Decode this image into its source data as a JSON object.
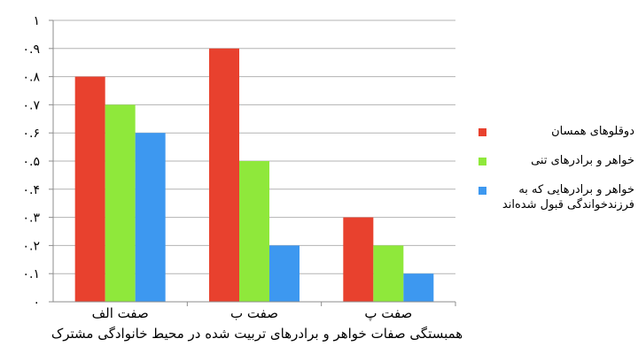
{
  "chart_data": {
    "type": "bar",
    "title": "",
    "caption": "همبستگی صفات خواهر و برادرهای تربیت شده در محیط خانوادگی مشترک",
    "categories": [
      "صفت الف",
      "صفت ب",
      "صفت پ"
    ],
    "series": [
      {
        "name": "دوقلوهای همسان",
        "color": "#e8412e",
        "values": [
          0.8,
          0.9,
          0.3
        ]
      },
      {
        "name": "خواهر و برادرهای تنی",
        "color": "#8fe83b",
        "values": [
          0.7,
          0.5,
          0.2
        ]
      },
      {
        "name": "خواهر و برادرهایی که به فرزندخواندگی قبول شده‌اند",
        "color": "#3d98f0",
        "values": [
          0.6,
          0.2,
          0.1
        ]
      }
    ],
    "ylim": [
      0,
      1
    ],
    "yticks": [
      {
        "value": 0,
        "label": "۰"
      },
      {
        "value": 0.1,
        "label": "۰.۱"
      },
      {
        "value": 0.2,
        "label": "۰.۲"
      },
      {
        "value": 0.3,
        "label": "۰.۳"
      },
      {
        "value": 0.4,
        "label": "۰.۴"
      },
      {
        "value": 0.5,
        "label": "۰.۵"
      },
      {
        "value": 0.6,
        "label": "۰.۶"
      },
      {
        "value": 0.7,
        "label": "۰.۷"
      },
      {
        "value": 0.8,
        "label": "۰.۸"
      },
      {
        "value": 0.9,
        "label": "۰.۹"
      },
      {
        "value": 1,
        "label": "۱"
      }
    ],
    "grid": true,
    "legend_position": "right"
  }
}
